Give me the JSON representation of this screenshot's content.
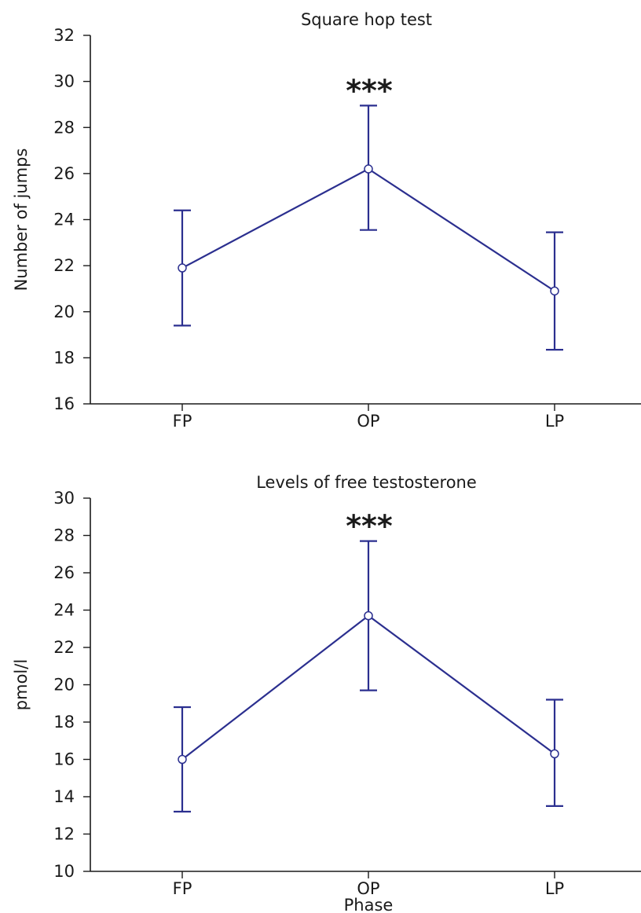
{
  "chart_data": [
    {
      "type": "line",
      "title": "Square hop test",
      "xlabel": "",
      "ylabel": "Number of jumps",
      "categories": [
        "FP",
        "OP",
        "LP"
      ],
      "ylim": [
        16,
        32
      ],
      "yticks": [
        16,
        18,
        20,
        22,
        24,
        26,
        28,
        30,
        32
      ],
      "grid": false,
      "series": [
        {
          "values": [
            21.9,
            26.2,
            20.9
          ],
          "error_low": [
            19.4,
            23.55,
            18.35
          ],
          "error_high": [
            24.4,
            28.95,
            23.45
          ],
          "color": "#2b2f8f"
        }
      ],
      "annotations": [
        {
          "category": "OP",
          "text": "***"
        }
      ]
    },
    {
      "type": "line",
      "title": "Levels of free testosterone",
      "xlabel": "Phase",
      "ylabel": "pmol/l",
      "categories": [
        "FP",
        "OP",
        "LP"
      ],
      "ylim": [
        10,
        30
      ],
      "yticks": [
        10,
        12,
        14,
        16,
        18,
        20,
        22,
        24,
        26,
        28,
        30
      ],
      "grid": false,
      "series": [
        {
          "values": [
            16.0,
            23.7,
            16.3
          ],
          "error_low": [
            13.2,
            19.7,
            13.5
          ],
          "error_high": [
            18.8,
            27.7,
            19.2
          ],
          "color": "#2b2f8f"
        }
      ],
      "annotations": [
        {
          "category": "OP",
          "text": "***"
        }
      ]
    }
  ]
}
